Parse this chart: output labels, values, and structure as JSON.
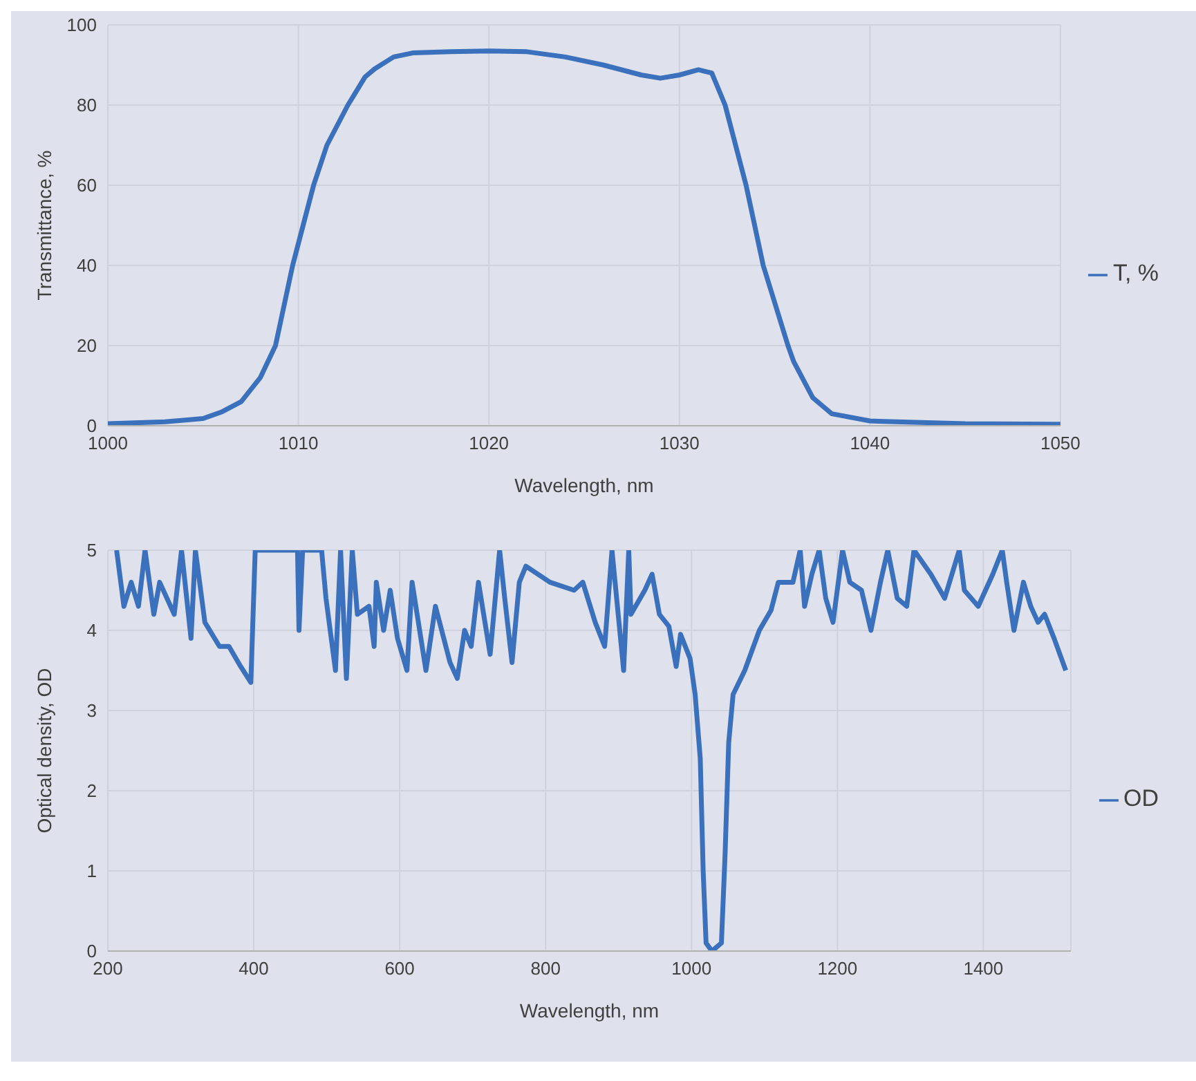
{
  "chart_data": [
    {
      "type": "line",
      "xlabel": "Wavelength, nm",
      "ylabel": "Transmittance, %",
      "xlim": [
        1000,
        1050
      ],
      "xticks": [
        1000,
        1010,
        1020,
        1030,
        1040,
        1050
      ],
      "ylim": [
        0,
        100
      ],
      "yticks": [
        0,
        20,
        40,
        60,
        80,
        100
      ],
      "grid": true,
      "legend": "right",
      "x": [
        1000,
        1003,
        1005,
        1006,
        1007,
        1008,
        1008.8,
        1009.7,
        1010.8,
        1011.5,
        1012.6,
        1013.5,
        1014,
        1015,
        1016,
        1018,
        1020,
        1022,
        1024,
        1026,
        1028,
        1029,
        1030,
        1031,
        1031.7,
        1032.4,
        1033.5,
        1034.4,
        1035.7,
        1036,
        1037,
        1038,
        1040,
        1045,
        1050
      ],
      "series": [
        {
          "name": "T, %",
          "color": "#3b70bd",
          "values": [
            0.5,
            1,
            1.8,
            3.5,
            6,
            12,
            20,
            40,
            60,
            70,
            80,
            87,
            89,
            92,
            93,
            93.3,
            93.5,
            93.3,
            92,
            90,
            87.5,
            86.7,
            87.5,
            88.8,
            88,
            80,
            60,
            40,
            20,
            16,
            7,
            3,
            1.2,
            0.5,
            0.4
          ]
        }
      ]
    },
    {
      "type": "line",
      "xlabel": "Wavelength, nm",
      "ylabel": "Optical density, OD",
      "xlim": [
        200,
        1520
      ],
      "xticks": [
        200,
        400,
        600,
        800,
        1000,
        1200,
        1400
      ],
      "ylim": [
        0,
        5
      ],
      "yticks": [
        0,
        1,
        2,
        3,
        4,
        5
      ],
      "grid": true,
      "legend": "right",
      "x": [
        212,
        222,
        232,
        242,
        251,
        263,
        271,
        291,
        301,
        314,
        320,
        333,
        353,
        366,
        382,
        396,
        402,
        460,
        462,
        467,
        493,
        499,
        512,
        519,
        527,
        535,
        542,
        558,
        565,
        568,
        578,
        587,
        597,
        610,
        617,
        636,
        649,
        669,
        679,
        689,
        698,
        708,
        724,
        737,
        744,
        754,
        764,
        773,
        806,
        839,
        851,
        868,
        881,
        891,
        907,
        914,
        917,
        936,
        946,
        956,
        969,
        979,
        985,
        998,
        1005,
        1012,
        1016,
        1020,
        1028,
        1041,
        1046,
        1051,
        1057,
        1073,
        1093,
        1109,
        1119,
        1139,
        1149,
        1155,
        1165,
        1175,
        1184,
        1194,
        1207,
        1217,
        1233,
        1246,
        1259,
        1269,
        1282,
        1295,
        1305,
        1328,
        1347,
        1367,
        1374,
        1393,
        1413,
        1426,
        1432,
        1442,
        1455,
        1465,
        1475,
        1484,
        1497,
        1513
      ],
      "series": [
        {
          "name": "OD",
          "color": "#3b70bd",
          "values": [
            5,
            4.3,
            4.6,
            4.3,
            5,
            4.2,
            4.6,
            4.2,
            5,
            3.9,
            5,
            4.1,
            3.8,
            3.8,
            3.55,
            3.35,
            5,
            5,
            4.0,
            5,
            5,
            4.4,
            3.5,
            5,
            3.4,
            5,
            4.2,
            4.3,
            3.8,
            4.6,
            4.0,
            4.5,
            3.9,
            3.5,
            4.6,
            3.5,
            4.3,
            3.6,
            3.4,
            4.0,
            3.8,
            4.6,
            3.7,
            5,
            4.4,
            3.6,
            4.6,
            4.8,
            4.6,
            4.5,
            4.6,
            4.1,
            3.8,
            5,
            3.5,
            5,
            4.2,
            4.5,
            4.7,
            4.2,
            4.05,
            3.55,
            3.95,
            3.65,
            3.2,
            2.4,
            1.0,
            0.1,
            0.0,
            0.1,
            1.2,
            2.6,
            3.2,
            3.5,
            4.0,
            4.25,
            4.6,
            4.6,
            5,
            4.3,
            4.7,
            5,
            4.4,
            4.1,
            5,
            4.6,
            4.5,
            4.0,
            4.6,
            5,
            4.4,
            4.3,
            5,
            4.7,
            4.4,
            5,
            4.5,
            4.3,
            4.7,
            5,
            4.6,
            4.0,
            4.6,
            4.3,
            4.1,
            4.2,
            3.9,
            3.5
          ]
        }
      ]
    }
  ]
}
